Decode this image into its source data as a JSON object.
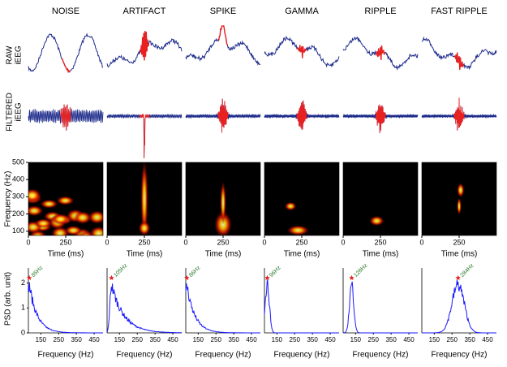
{
  "columns": [
    "NOISE",
    "ARTIFACT",
    "SPIKE",
    "GAMMA",
    "RIPPLE",
    "FAST RIPPLE"
  ],
  "row_labels": {
    "raw": [
      "RAW",
      "iEEG"
    ],
    "filtered": [
      "FILTERED",
      "iEEG"
    ]
  },
  "spectrogram": {
    "ylabel": "Frequency (Hz)",
    "xlabel": "Time (ms)",
    "xlim": [
      0,
      500
    ],
    "ylim": [
      75,
      500
    ],
    "xticks": [
      0,
      250
    ],
    "yticks": [
      100,
      200,
      300,
      400,
      500
    ]
  },
  "psd": {
    "ylabel": "PSD (arb. unit)",
    "xlabel": "Frequency (Hz)",
    "xlim": [
      80,
      500
    ],
    "ylim": [
      0,
      2.6
    ],
    "xticks": [
      150,
      250,
      350,
      450
    ],
    "yticks": [
      0,
      1,
      2
    ],
    "color": "#1a1aff",
    "peaks": [
      {
        "freq": 85,
        "height": 2.2,
        "label": "85Hz"
      },
      {
        "freq": 105,
        "height": 2.2,
        "label": "105Hz"
      },
      {
        "freq": 86,
        "height": 2.2,
        "label": "86Hz"
      },
      {
        "freq": 96,
        "height": 2.2,
        "label": "96Hz"
      },
      {
        "freq": 128,
        "height": 2.2,
        "label": "128Hz"
      },
      {
        "freq": 284,
        "height": 2.2,
        "label": "284Hz"
      }
    ]
  }
}
